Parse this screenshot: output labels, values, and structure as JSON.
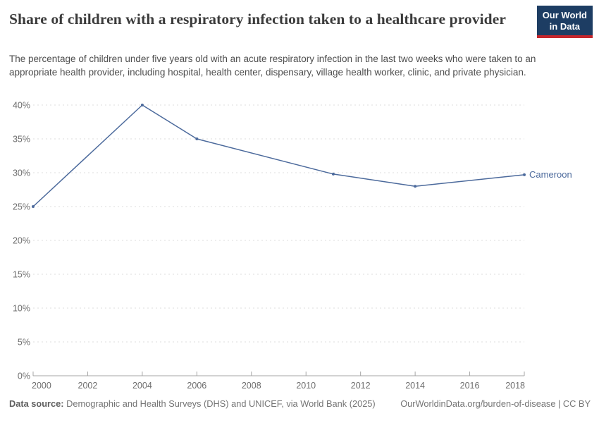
{
  "header": {
    "title": "Share of children with a respiratory infection taken to a healthcare provider",
    "subtitle": "The percentage of children under five years old with an acute respiratory infection in the last two weeks who were taken to an appropriate health provider, including hospital, health center, dispensary, village health worker, clinic, and private physician.",
    "logo": {
      "line1": "Our World",
      "line2": "in Data"
    }
  },
  "chart_data": {
    "type": "line",
    "title": "Share of children with a respiratory infection taken to a healthcare provider",
    "x": [
      2000,
      2004,
      2006,
      2011,
      2014,
      2018
    ],
    "series": [
      {
        "name": "Cameroon",
        "color": "#4C6A9C",
        "values": [
          25,
          40,
          35,
          29.8,
          28,
          29.7
        ]
      }
    ],
    "xlabel": "",
    "ylabel": "",
    "xlim": [
      2000,
      2018
    ],
    "ylim": [
      0,
      40
    ],
    "x_tick_values": [
      2000,
      2002,
      2004,
      2006,
      2008,
      2010,
      2012,
      2014,
      2016,
      2018
    ],
    "x_tick_labels": [
      "2000",
      "2002",
      "2004",
      "2006",
      "2008",
      "2010",
      "2012",
      "2014",
      "2016",
      "2018"
    ],
    "y_tick_values": [
      0,
      5,
      10,
      15,
      20,
      25,
      30,
      35,
      40
    ],
    "y_tick_labels": [
      "0%",
      "5%",
      "10%",
      "15%",
      "20%",
      "25%",
      "30%",
      "35%",
      "40%"
    ],
    "grid": "horizontal-dashed",
    "legend_position": "end-of-line"
  },
  "footer": {
    "datasource_label": "Data source:",
    "datasource_text": "Demographic and Health Surveys (DHS) and UNICEF, via World Bank (2025)",
    "link_text": "OurWorldinData.org/burden-of-disease | CC BY"
  },
  "colors": {
    "line": "#4C6A9C",
    "entity_label": "#4C6A9C",
    "grid": "#dcdcdc",
    "axis": "#a5a5a5",
    "tick_label": "#6e6e6e",
    "title": "#3b3b3b",
    "subtitle": "#4e4e4e",
    "footer": "#757575",
    "logo_bg": "#1d3d63",
    "logo_accent": "#c5262c"
  }
}
